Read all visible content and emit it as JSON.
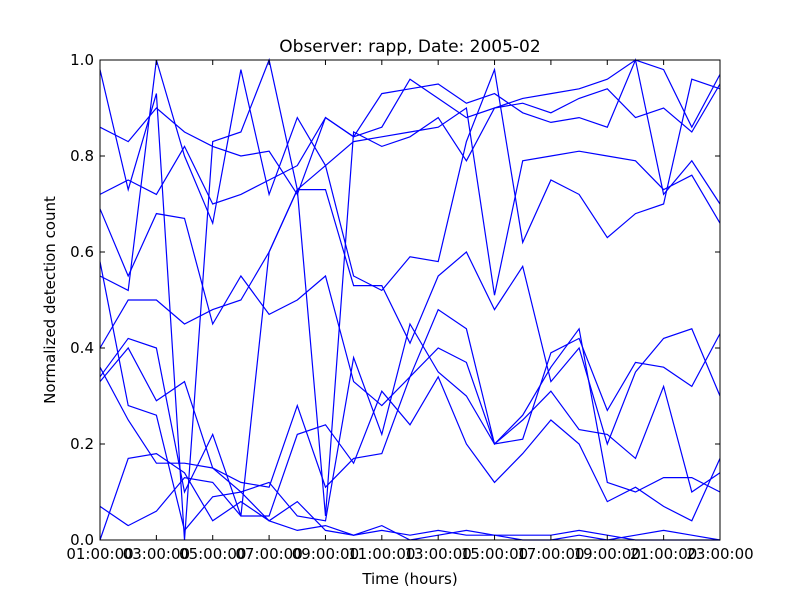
{
  "chart_data": {
    "type": "line",
    "title": "Observer: rapp, Date: 2005-02",
    "xlabel": "Time (hours)",
    "ylabel": "Normalized detection count",
    "xlim": [
      1,
      23
    ],
    "ylim": [
      0,
      1
    ],
    "x_ticks": [
      {
        "value": 1,
        "label": "01:00:00"
      },
      {
        "value": 3,
        "label": "03:00:00"
      },
      {
        "value": 5,
        "label": "05:00:00"
      },
      {
        "value": 7,
        "label": "07:00:00"
      },
      {
        "value": 9,
        "label": "09:00:00"
      },
      {
        "value": 11,
        "label": "11:00:00"
      },
      {
        "value": 13,
        "label": "13:00:00"
      },
      {
        "value": 15,
        "label": "15:00:00"
      },
      {
        "value": 17,
        "label": "17:00:00"
      },
      {
        "value": 19,
        "label": "19:00:00"
      },
      {
        "value": 21,
        "label": "21:00:00"
      },
      {
        "value": 23,
        "label": "23:00:00"
      }
    ],
    "y_ticks": [
      {
        "value": 0.0,
        "label": "0.0"
      },
      {
        "value": 0.2,
        "label": "0.2"
      },
      {
        "value": 0.4,
        "label": "0.4"
      },
      {
        "value": 0.6,
        "label": "0.6"
      },
      {
        "value": 0.8,
        "label": "0.8"
      },
      {
        "value": 1.0,
        "label": "1.0"
      }
    ],
    "grid": false,
    "line_color": "#0000ff",
    "x": [
      1,
      2,
      3,
      4,
      5,
      6,
      7,
      8,
      9,
      10,
      11,
      12,
      13,
      14,
      15,
      16,
      17,
      18,
      19,
      20,
      21,
      22,
      23
    ],
    "series": [
      {
        "values": [
          0.98,
          0.73,
          0.93,
          0.0,
          0.83,
          0.85,
          1.0,
          0.73,
          0.05,
          0.85,
          0.82,
          0.84,
          0.88,
          0.79,
          0.9,
          0.92,
          0.93,
          0.94,
          0.96,
          1.0,
          0.98,
          0.86,
          0.97
        ]
      },
      {
        "values": [
          0.86,
          0.83,
          0.9,
          0.85,
          0.82,
          0.8,
          0.81,
          0.72,
          0.88,
          0.84,
          0.93,
          0.94,
          0.95,
          0.91,
          0.93,
          0.89,
          0.87,
          0.88,
          0.86,
          1.0,
          0.72,
          0.79,
          0.7
        ]
      },
      {
        "values": [
          0.72,
          0.75,
          0.72,
          0.82,
          0.7,
          0.72,
          0.75,
          0.78,
          0.88,
          0.84,
          0.86,
          0.96,
          0.92,
          0.88,
          0.9,
          0.91,
          0.89,
          0.92,
          0.94,
          0.88,
          0.9,
          0.85,
          0.95
        ]
      },
      {
        "values": [
          0.55,
          0.52,
          1.0,
          0.8,
          0.66,
          0.98,
          0.72,
          0.88,
          0.78,
          0.83,
          0.84,
          0.85,
          0.86,
          0.9,
          0.51,
          0.79,
          0.8,
          0.81,
          0.8,
          0.79,
          0.73,
          0.76,
          0.66
        ]
      },
      {
        "values": [
          0.4,
          0.5,
          0.5,
          0.45,
          0.48,
          0.5,
          0.6,
          0.73,
          0.78,
          0.55,
          0.52,
          0.59,
          0.58,
          0.83,
          0.98,
          0.62,
          0.75,
          0.72,
          0.63,
          0.68,
          0.7,
          0.96,
          0.94
        ]
      },
      {
        "values": [
          0.34,
          0.42,
          0.4,
          0.1,
          0.22,
          0.05,
          0.6,
          0.73,
          0.73,
          0.53,
          0.53,
          0.41,
          0.55,
          0.6,
          0.48,
          0.57,
          0.33,
          0.4,
          0.2,
          0.35,
          0.42,
          0.44,
          0.3
        ]
      },
      {
        "values": [
          0.69,
          0.55,
          0.68,
          0.67,
          0.45,
          0.55,
          0.47,
          0.5,
          0.55,
          0.33,
          0.28,
          0.34,
          0.48,
          0.44,
          0.2,
          0.21,
          0.39,
          0.42,
          0.27,
          0.37,
          0.36,
          0.32,
          0.43
        ]
      },
      {
        "values": [
          0.36,
          0.25,
          0.16,
          0.16,
          0.15,
          0.12,
          0.11,
          0.28,
          0.11,
          0.17,
          0.18,
          0.34,
          0.4,
          0.37,
          0.2,
          0.25,
          0.31,
          0.23,
          0.22,
          0.17,
          0.32,
          0.1,
          0.14
        ]
      },
      {
        "values": [
          0.33,
          0.4,
          0.29,
          0.33,
          0.15,
          0.1,
          0.12,
          0.05,
          0.04,
          0.38,
          0.22,
          0.45,
          0.35,
          0.3,
          0.2,
          0.26,
          0.36,
          0.44,
          0.12,
          0.1,
          0.13,
          0.13,
          0.1
        ]
      },
      {
        "values": [
          0.07,
          0.03,
          0.06,
          0.13,
          0.12,
          0.05,
          0.05,
          0.22,
          0.24,
          0.16,
          0.31,
          0.24,
          0.34,
          0.2,
          0.12,
          0.18,
          0.25,
          0.2,
          0.08,
          0.11,
          0.07,
          0.04,
          0.17
        ]
      },
      {
        "values": [
          0.0,
          0.17,
          0.18,
          0.14,
          0.04,
          0.08,
          0.04,
          0.02,
          0.03,
          0.01,
          0.02,
          0.01,
          0.02,
          0.01,
          0.01,
          0.01,
          0.01,
          0.02,
          0.01,
          0.0,
          0.0,
          0.0,
          0.0
        ]
      },
      {
        "values": [
          0.58,
          0.28,
          0.26,
          0.02,
          0.09,
          0.1,
          0.04,
          0.08,
          0.02,
          0.01,
          0.03,
          0.0,
          0.01,
          0.02,
          0.01,
          0.0,
          0.0,
          0.01,
          0.0,
          0.01,
          0.02,
          0.01,
          0.0
        ]
      }
    ]
  }
}
